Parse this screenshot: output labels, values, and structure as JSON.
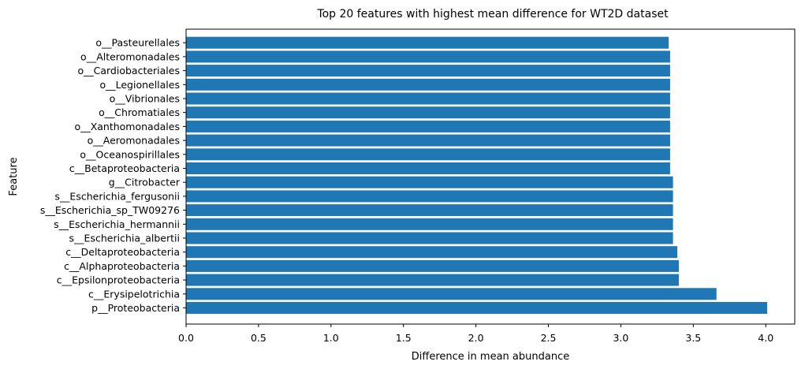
{
  "chart_data": {
    "type": "bar",
    "orientation": "horizontal",
    "title": "Top 20 features with highest mean difference for WT2D dataset",
    "xlabel": "Difference in mean abundance",
    "ylabel": "Feature",
    "xlim": [
      0.0,
      4.2
    ],
    "xticks": [
      "0.0",
      "0.5",
      "1.0",
      "1.5",
      "2.0",
      "2.5",
      "3.0",
      "3.5",
      "4.0"
    ],
    "grid": false,
    "bar_color": "#1f77b4",
    "categories": [
      "p__Proteobacteria",
      "c__Erysipelotrichia",
      "c__Epsilonproteobacteria",
      "c__Alphaproteobacteria",
      "c__Deltaproteobacteria",
      "s__Escherichia_albertii",
      "s__Escherichia_hermannii",
      "s__Escherichia_sp_TW09276",
      "s__Escherichia_fergusonii",
      "g__Citrobacter",
      "c__Betaproteobacteria",
      "o__Oceanospirillales",
      "o__Aeromonadales",
      "o__Xanthomonadales",
      "o__Chromatiales",
      "o__Vibrionales",
      "o__Legionellales",
      "o__Cardiobacteriales",
      "o__Alteromonadales",
      "o__Pasteurellales"
    ],
    "values": [
      4.01,
      3.66,
      3.4,
      3.4,
      3.39,
      3.36,
      3.36,
      3.36,
      3.36,
      3.36,
      3.34,
      3.34,
      3.34,
      3.34,
      3.34,
      3.34,
      3.34,
      3.34,
      3.34,
      3.33
    ]
  }
}
